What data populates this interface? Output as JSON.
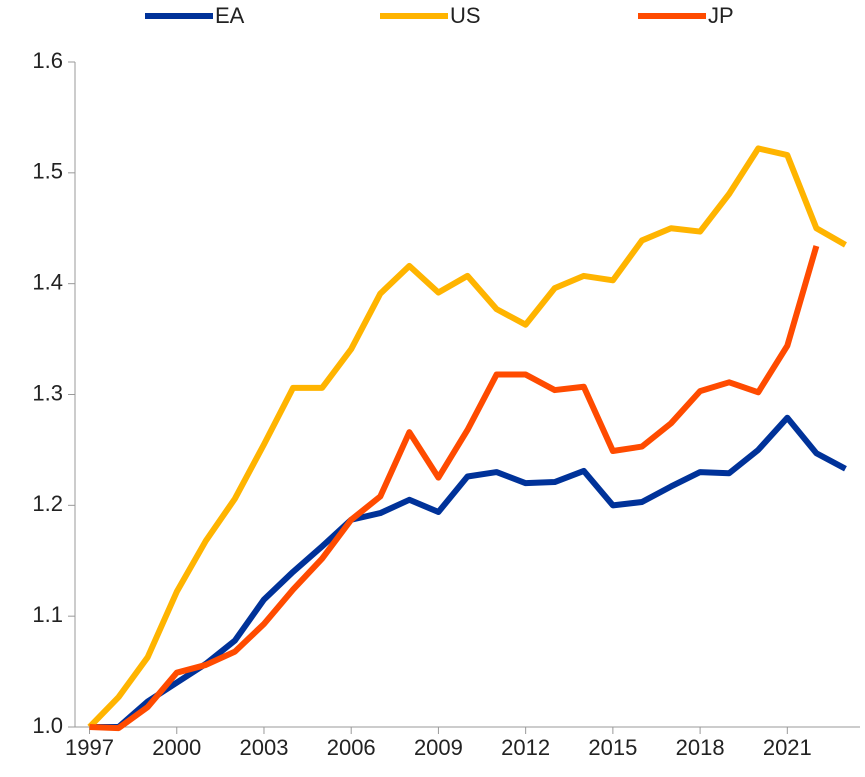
{
  "chart_data": {
    "type": "line",
    "x": [
      1997,
      1998,
      1999,
      2000,
      2001,
      2002,
      2003,
      2004,
      2005,
      2006,
      2007,
      2008,
      2009,
      2010,
      2011,
      2012,
      2013,
      2014,
      2015,
      2016,
      2017,
      2018,
      2019,
      2020,
      2021,
      2022,
      2023
    ],
    "series": [
      {
        "name": "EA",
        "color": "#003299",
        "values": [
          1.0,
          1.0,
          1.023,
          1.04,
          1.057,
          1.078,
          1.115,
          1.14,
          1.163,
          1.187,
          1.193,
          1.205,
          1.194,
          1.226,
          1.23,
          1.22,
          1.221,
          1.231,
          1.2,
          1.203,
          1.217,
          1.23,
          1.229,
          1.25,
          1.279,
          1.247,
          1.233
        ]
      },
      {
        "name": "US",
        "color": "#ffb400",
        "values": [
          1.0,
          1.027,
          1.063,
          1.122,
          1.168,
          1.206,
          1.255,
          1.306,
          1.306,
          1.341,
          1.391,
          1.416,
          1.392,
          1.407,
          1.377,
          1.363,
          1.396,
          1.407,
          1.403,
          1.439,
          1.45,
          1.447,
          1.481,
          1.522,
          1.516,
          1.45,
          1.435
        ]
      },
      {
        "name": "JP",
        "color": "#ff4b00",
        "values": [
          1.0,
          0.999,
          1.018,
          1.049,
          1.056,
          1.068,
          1.093,
          1.124,
          1.152,
          1.187,
          1.208,
          1.266,
          1.225,
          1.268,
          1.318,
          1.318,
          1.304,
          1.307,
          1.249,
          1.253,
          1.274,
          1.303,
          1.311,
          1.302,
          1.344,
          1.434,
          null
        ]
      }
    ],
    "xlim": [
      1996.5,
      2023.5
    ],
    "xticks": [
      1997,
      2000,
      2003,
      2006,
      2009,
      2012,
      2015,
      2018,
      2021
    ],
    "ylim": [
      1.0,
      1.6
    ],
    "yticks": [
      {
        "value": 1,
        "label": "1.0"
      },
      1.1,
      1.2,
      1.3,
      1.4,
      1.5,
      1.6
    ]
  }
}
